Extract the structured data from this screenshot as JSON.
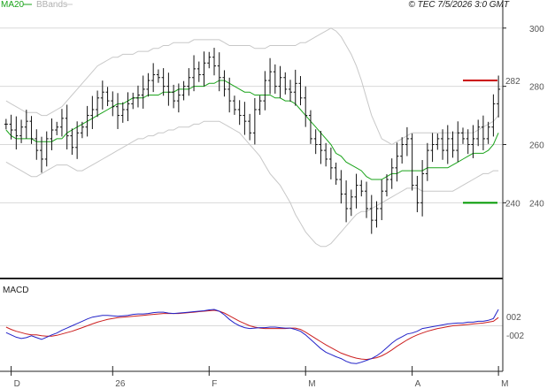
{
  "header": {
    "ma_label": "MA20",
    "bb_label": "BBands",
    "copyright": "© TEC 7/5/2026 3:0 GMT"
  },
  "macd_panel": {
    "label": "MACD"
  },
  "colors": {
    "ma": "#1aa31a",
    "bbands": "#c8c8c8",
    "price": "#111111",
    "macd": "#2323c8",
    "signal": "#cc1f1f",
    "resistance": "#cc0000",
    "support": "#009900",
    "grid": "#d9d9d9",
    "axis": "#222222"
  },
  "chart_data": [
    {
      "type": "ohlc",
      "name": "price",
      "ylim": [
        214,
        306
      ],
      "yticks": [
        240,
        260,
        280,
        300
      ],
      "xtick_labels": [
        {
          "i": 1,
          "label": "D"
        },
        {
          "i": 21,
          "label": "26"
        },
        {
          "i": 40,
          "label": "F"
        },
        {
          "i": 59,
          "label": "M"
        },
        {
          "i": 80,
          "label": "A"
        },
        {
          "i": 97,
          "label": "M"
        }
      ],
      "close": [
        267,
        265,
        263,
        266,
        268,
        262,
        258,
        255,
        262,
        265,
        266,
        269,
        263,
        259,
        264,
        266,
        270,
        272,
        276,
        278,
        275,
        273,
        270,
        272,
        274,
        276,
        277,
        279,
        282,
        284,
        283,
        280,
        278,
        275,
        277,
        280,
        283,
        286,
        284,
        288,
        290,
        287,
        283,
        279,
        275,
        272,
        270,
        268,
        264,
        272,
        275,
        282,
        285,
        280,
        283,
        279,
        278,
        281,
        276,
        270,
        262,
        260,
        258,
        255,
        252,
        248,
        243,
        238,
        242,
        246,
        244,
        238,
        234,
        238,
        244,
        248,
        252,
        256,
        260,
        262,
        246,
        240,
        250,
        258,
        260,
        262,
        258,
        262,
        258,
        264,
        262,
        260,
        262,
        266,
        262,
        266,
        274,
        279
      ],
      "ma20": [
        265,
        263,
        262,
        262,
        262,
        262,
        261,
        261,
        261,
        261,
        262,
        262,
        264,
        265,
        266,
        267,
        268,
        269,
        270,
        271,
        272,
        273,
        274,
        274,
        275,
        276,
        276,
        276,
        277,
        277,
        277,
        278,
        278,
        278,
        279,
        279,
        279,
        280,
        280,
        280,
        281,
        281,
        282,
        282,
        281,
        280,
        279,
        278,
        278,
        277,
        277,
        277,
        277,
        276,
        276,
        275,
        275,
        274,
        272,
        270,
        268,
        266,
        264,
        262,
        260,
        257,
        256,
        254,
        253,
        252,
        251,
        249,
        248,
        248,
        248,
        249,
        250,
        250,
        251,
        251,
        251,
        251,
        251,
        252,
        252,
        252,
        252,
        252,
        253,
        254,
        255,
        256,
        257,
        257,
        257,
        258,
        260,
        264
      ],
      "bb_upper": [
        275,
        274,
        273,
        272,
        271,
        271,
        271,
        270,
        270,
        271,
        272,
        273,
        275,
        277,
        279,
        281,
        283,
        285,
        287,
        288,
        289,
        290,
        290,
        291,
        291,
        291,
        292,
        292,
        292,
        293,
        293,
        294,
        294,
        295,
        295,
        295,
        295,
        296,
        296,
        296,
        296,
        296,
        296,
        295,
        294,
        294,
        294,
        294,
        294,
        293,
        293,
        293,
        294,
        294,
        294,
        294,
        294,
        294,
        295,
        295,
        296,
        297,
        298,
        299,
        300,
        299,
        297,
        294,
        291,
        287,
        282,
        276,
        270,
        266,
        262,
        261,
        260,
        261,
        262,
        263,
        264,
        264,
        264,
        264,
        264,
        264,
        264,
        264,
        264,
        264,
        264,
        264,
        264,
        265,
        266,
        267,
        268,
        270
      ],
      "bb_lower": [
        254,
        253,
        252,
        251,
        250,
        249,
        249,
        250,
        251,
        252,
        253,
        253,
        253,
        252,
        251,
        251,
        252,
        253,
        254,
        255,
        256,
        257,
        258,
        259,
        260,
        261,
        262,
        262,
        263,
        263,
        264,
        264,
        265,
        265,
        266,
        266,
        266,
        267,
        267,
        268,
        268,
        268,
        268,
        267,
        266,
        265,
        264,
        262,
        260,
        258,
        256,
        253,
        250,
        248,
        246,
        243,
        240,
        236,
        233,
        230,
        228,
        226,
        225,
        225,
        226,
        228,
        230,
        232,
        234,
        236,
        237,
        237,
        238,
        239,
        240,
        241,
        242,
        243,
        244,
        245,
        245,
        245,
        244,
        244,
        244,
        244,
        244,
        244,
        244,
        245,
        246,
        247,
        248,
        249,
        250,
        250,
        251,
        251
      ],
      "horizontal_lines": [
        {
          "value": 282,
          "label": "282",
          "color": "#cc0000"
        },
        {
          "value": 240,
          "label": "240",
          "color": "#009900"
        }
      ]
    },
    {
      "type": "line",
      "name": "macd",
      "ylim": [
        -10,
        10
      ],
      "ytick_labels": [
        {
          "value": 2,
          "label": "002"
        },
        {
          "value": -2,
          "label": "-002"
        }
      ],
      "series": [
        {
          "name": "MACD",
          "values": [
            -1.5,
            -2.0,
            -2.5,
            -2.8,
            -2.6,
            -2.2,
            -2.6,
            -3.0,
            -2.5,
            -2.0,
            -1.6,
            -1.0,
            -0.5,
            0.0,
            0.5,
            1.0,
            1.5,
            1.9,
            2.1,
            2.3,
            2.3,
            2.2,
            2.1,
            2.2,
            2.3,
            2.5,
            2.6,
            2.6,
            2.7,
            2.9,
            3.0,
            3.0,
            2.8,
            2.7,
            2.8,
            2.9,
            3.0,
            3.1,
            3.2,
            3.3,
            3.5,
            3.6,
            3.2,
            2.4,
            1.4,
            0.6,
            0.0,
            -0.4,
            -0.6,
            -0.5,
            -0.4,
            -0.4,
            -0.3,
            -0.3,
            -0.4,
            -0.5,
            -0.5,
            -0.8,
            -1.2,
            -2.0,
            -3.0,
            -4.0,
            -5.0,
            -5.8,
            -6.3,
            -6.8,
            -7.2,
            -7.8,
            -8.2,
            -8.3,
            -8.0,
            -7.6,
            -7.2,
            -6.6,
            -5.8,
            -4.8,
            -3.8,
            -3.0,
            -2.4,
            -1.8,
            -1.6,
            -1.2,
            -0.6,
            -0.4,
            -0.2,
            0.0,
            0.2,
            0.4,
            0.5,
            0.6,
            0.6,
            0.8,
            0.8,
            1.0,
            1.0,
            1.2,
            1.6,
            3.6
          ]
        },
        {
          "name": "Signal",
          "values": [
            -0.3,
            -0.8,
            -1.2,
            -1.5,
            -1.8,
            -2.0,
            -2.0,
            -2.2,
            -2.3,
            -2.3,
            -2.1,
            -1.8,
            -1.5,
            -1.2,
            -0.8,
            -0.4,
            0.0,
            0.4,
            0.8,
            1.1,
            1.4,
            1.6,
            1.8,
            1.9,
            2.0,
            2.1,
            2.2,
            2.3,
            2.4,
            2.5,
            2.6,
            2.7,
            2.7,
            2.7,
            2.7,
            2.8,
            2.9,
            3.0,
            3.1,
            3.2,
            3.3,
            3.4,
            3.2,
            2.8,
            2.2,
            1.6,
            1.0,
            0.5,
            0.0,
            -0.3,
            -0.5,
            -0.6,
            -0.6,
            -0.6,
            -0.6,
            -0.6,
            -0.5,
            -0.5,
            -0.8,
            -1.4,
            -2.1,
            -2.8,
            -3.5,
            -4.2,
            -4.8,
            -5.4,
            -6.0,
            -6.4,
            -6.8,
            -7.1,
            -7.3,
            -7.4,
            -7.2,
            -7.0,
            -6.6,
            -6.0,
            -5.3,
            -4.5,
            -3.8,
            -3.1,
            -2.5,
            -2.0,
            -1.6,
            -1.2,
            -0.9,
            -0.6,
            -0.4,
            -0.2,
            0.0,
            0.1,
            0.2,
            0.3,
            0.4,
            0.5,
            0.6,
            0.8,
            1.0,
            1.8
          ]
        }
      ]
    }
  ]
}
